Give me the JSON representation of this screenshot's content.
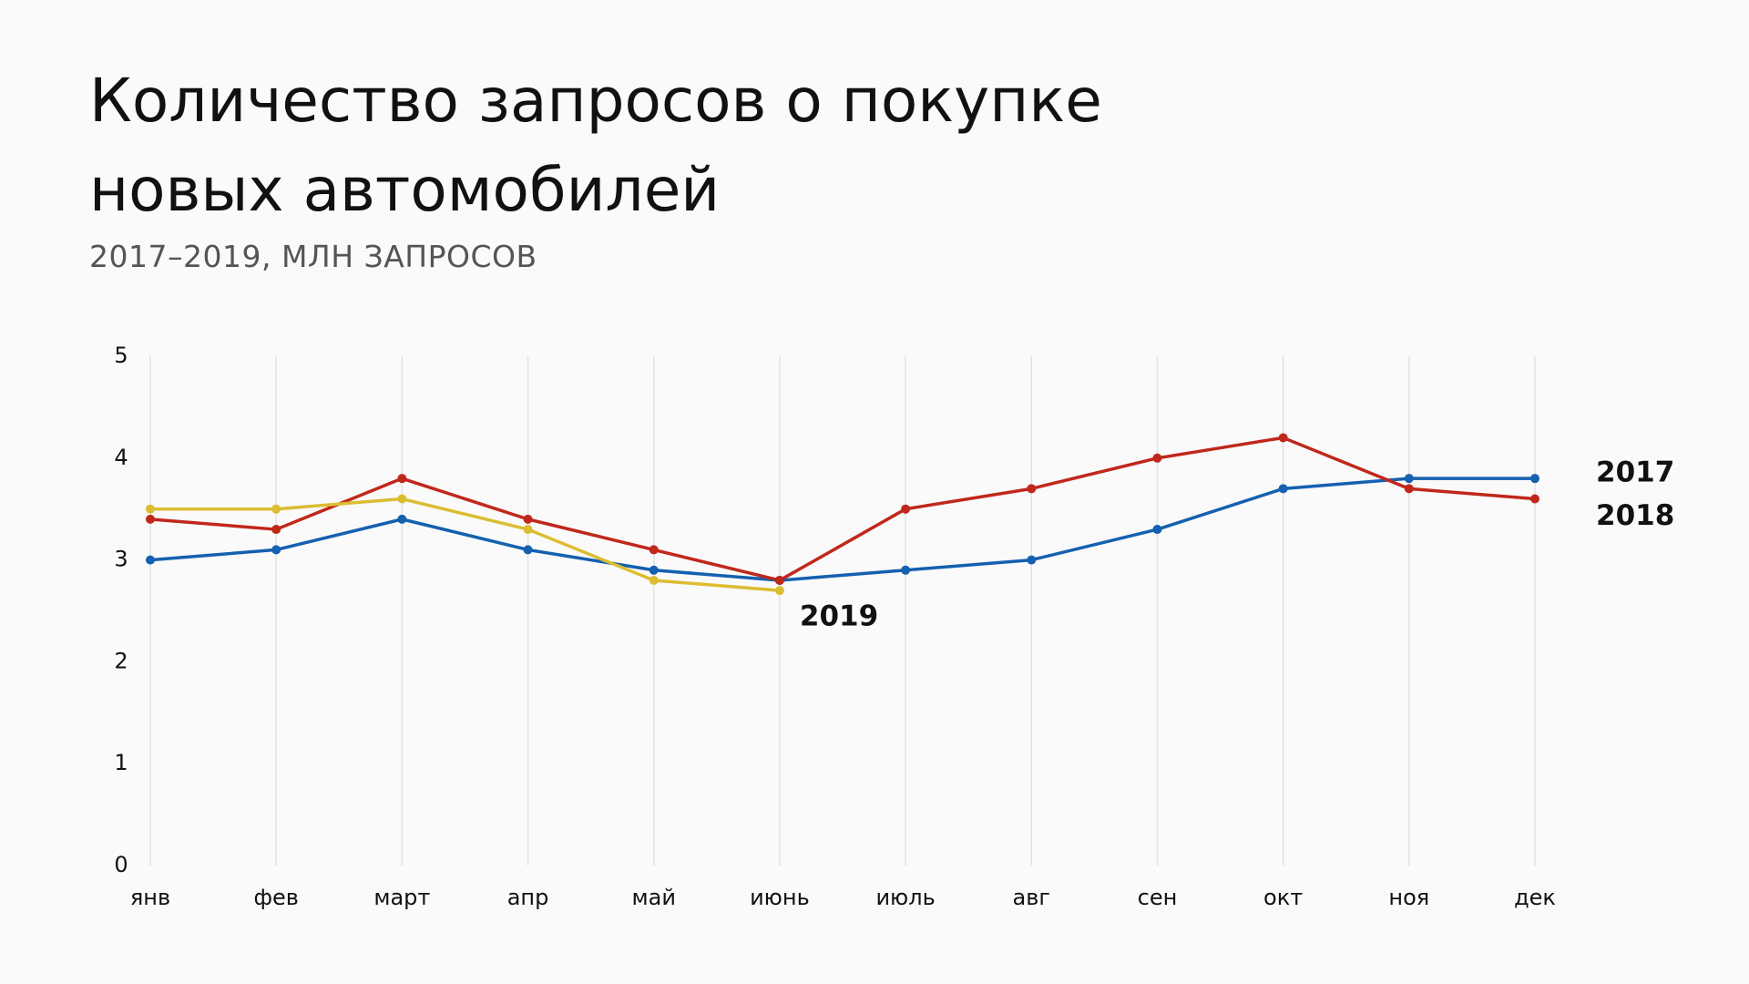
{
  "chart_data": {
    "type": "line",
    "title": "Количество запросов о покупке новых автомобилей",
    "subtitle": "2017–2019, МЛН ЗАПРОСОВ",
    "categories": [
      "янв",
      "фев",
      "март",
      "апр",
      "май",
      "июнь",
      "июль",
      "авг",
      "сен",
      "окт",
      "ноя",
      "дек"
    ],
    "series": [
      {
        "name": "2017",
        "color": "#1560b0",
        "values": [
          3.0,
          3.1,
          3.4,
          3.1,
          2.9,
          2.8,
          2.9,
          3.0,
          3.3,
          3.7,
          3.8,
          3.8
        ]
      },
      {
        "name": "2018",
        "color": "#c0281b",
        "values": [
          3.4,
          3.3,
          3.8,
          3.4,
          3.1,
          2.8,
          3.5,
          3.7,
          4.0,
          4.2,
          3.7,
          3.6
        ]
      },
      {
        "name": "2019",
        "color": "#dcbd32",
        "values": [
          3.5,
          3.5,
          3.6,
          3.3,
          2.8,
          2.7,
          null,
          null,
          null,
          null,
          null,
          null
        ]
      }
    ],
    "ylim": [
      0,
      5
    ],
    "yticks": [
      0,
      1,
      2,
      3,
      4,
      5
    ],
    "grid": true
  }
}
